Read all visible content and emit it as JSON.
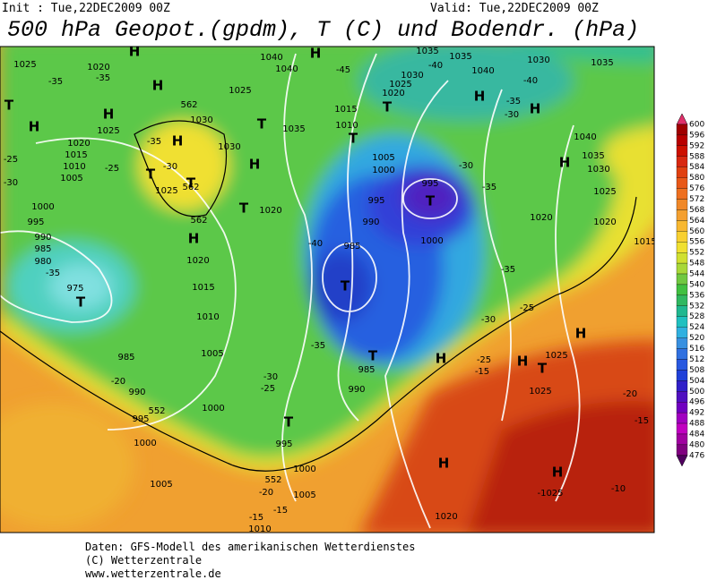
{
  "header": {
    "init": "Init : Tue,22DEC2009 00Z",
    "valid": "Valid: Tue,22DEC2009 00Z",
    "title": "500 hPa Geopot.(gpdm), T (C) und Bodendr. (hPa)"
  },
  "colorbar": {
    "labels": [
      600,
      596,
      592,
      588,
      584,
      580,
      576,
      572,
      568,
      564,
      560,
      556,
      552,
      548,
      544,
      540,
      536,
      532,
      528,
      524,
      520,
      516,
      512,
      508,
      504,
      500,
      496,
      492,
      488,
      484,
      480,
      476
    ]
  },
  "map": {
    "labels": [
      "1025",
      "1020",
      "-35",
      "-35",
      "H",
      "H",
      "1025",
      "1040",
      "1040",
      "H",
      "-45",
      "1035",
      "-40",
      "1035",
      "1040",
      "1030",
      "1035",
      "1030",
      "1025",
      "1020",
      "H",
      "H",
      "-35",
      "-30",
      "-40",
      "T",
      "H",
      "H",
      "1025",
      "1020",
      "1015",
      "1010",
      "1005",
      "-25",
      "1030",
      "T",
      "1030",
      "H",
      "1035",
      "1015",
      "1010",
      "T",
      "T",
      "1005",
      "1000",
      "-30",
      "-35",
      "995",
      "T",
      "1000",
      "995",
      "990",
      "985",
      "T",
      "-40",
      "1040",
      "1035",
      "1030",
      "H",
      "1025",
      "1020",
      "1020",
      "1015",
      "-25",
      "-30",
      "1000",
      "995",
      "990",
      "985",
      "980",
      "-35",
      "975",
      "T",
      "H",
      "1020",
      "1015",
      "1010",
      "1005",
      "985",
      "-20",
      "990",
      "995",
      "1000",
      "1005",
      "-30",
      "-25",
      "-35",
      "1000",
      "990",
      "985",
      "T",
      "T",
      "995",
      "1000",
      "1005",
      "-20",
      "-15",
      "-15",
      "T",
      "1025",
      "1020",
      "T",
      "-25",
      "-30",
      "-35",
      "-25",
      "H",
      "H",
      "H",
      "T",
      "1025",
      "1025",
      "-15",
      "H",
      "H",
      "-1025",
      "-10",
      "1020",
      "-20",
      "-15",
      "1010",
      "562",
      "562",
      "562",
      "552",
      "552",
      "H",
      "-35",
      "-30",
      "T"
    ]
  },
  "footer": {
    "lines": [
      "Daten: GFS-Modell des amerikanischen Wetterdienstes",
      "(C) Wetterzentrale",
      "www.wetterzentrale.de"
    ]
  }
}
